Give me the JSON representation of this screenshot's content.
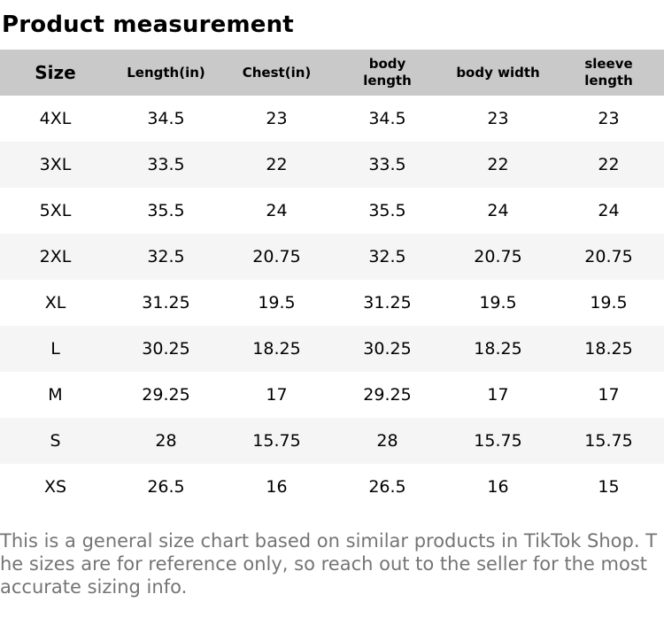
{
  "page": {
    "title": "Product measurement",
    "footer": "This is a general size chart based on similar products in TikTok Shop. The sizes are for reference only, so reach out to the seller for the most accurate sizing info."
  },
  "table": {
    "headers": [
      "Size",
      "Length(in)",
      "Chest(in)",
      "body length",
      "body width",
      "sleeve length"
    ],
    "rows": [
      [
        "4XL",
        "34.5",
        "23",
        "34.5",
        "23",
        "23"
      ],
      [
        "3XL",
        "33.5",
        "22",
        "33.5",
        "22",
        "22"
      ],
      [
        "5XL",
        "35.5",
        "24",
        "35.5",
        "24",
        "24"
      ],
      [
        "2XL",
        "32.5",
        "20.75",
        "32.5",
        "20.75",
        "20.75"
      ],
      [
        "XL",
        "31.25",
        "19.5",
        "31.25",
        "19.5",
        "19.5"
      ],
      [
        "L",
        "30.25",
        "18.25",
        "30.25",
        "18.25",
        "18.25"
      ],
      [
        "M",
        "29.25",
        "17",
        "29.25",
        "17",
        "17"
      ],
      [
        "S",
        "28",
        "15.75",
        "28",
        "15.75",
        "15.75"
      ],
      [
        "XS",
        "26.5",
        "16",
        "26.5",
        "16",
        "15"
      ]
    ]
  },
  "colors": {
    "header_bg": "#c9c9c9",
    "row_alt_bg": "#f5f5f5",
    "footer_text": "#757575"
  }
}
